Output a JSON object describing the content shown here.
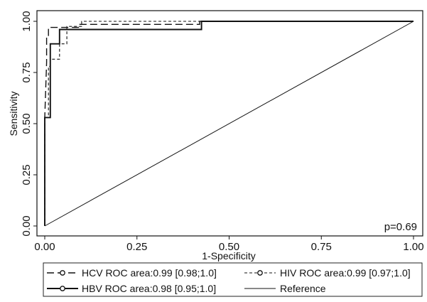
{
  "chart_data": {
    "type": "line",
    "title": "",
    "xlabel": "1-Specificity",
    "ylabel": "Sensitivity",
    "xlim": [
      0,
      1
    ],
    "ylim": [
      0,
      1
    ],
    "x_ticks": [
      "0.00",
      "0.25",
      "0.50",
      "0.75",
      "1.00"
    ],
    "y_ticks": [
      "0.00",
      "0.25",
      "0.50",
      "0.75",
      "1.00"
    ],
    "grid": false,
    "legend_position": "bottom",
    "annotation": "p=0.69",
    "series": [
      {
        "name": "HCV ROC area:0.99 [0.98;1.0]",
        "line_style": "long-dash",
        "color": "#111111",
        "points": [
          [
            0,
            0
          ],
          [
            0,
            0.53
          ],
          [
            0.005,
            0.8
          ],
          [
            0.005,
            0.92
          ],
          [
            0.01,
            0.92
          ],
          [
            0.01,
            0.97
          ],
          [
            0.095,
            0.97
          ],
          [
            0.095,
            0.985
          ],
          [
            0.42,
            0.985
          ],
          [
            0.42,
            1.0
          ],
          [
            1.0,
            1.0
          ]
        ]
      },
      {
        "name": "HIV ROC area:0.99 [0.97;1.0]",
        "line_style": "short-dash",
        "color": "#111111",
        "points": [
          [
            0,
            0
          ],
          [
            0,
            0.53
          ],
          [
            0.01,
            0.53
          ],
          [
            0.01,
            0.78
          ],
          [
            0.015,
            0.78
          ],
          [
            0.015,
            0.815
          ],
          [
            0.04,
            0.815
          ],
          [
            0.04,
            0.89
          ],
          [
            0.06,
            0.89
          ],
          [
            0.06,
            0.975
          ],
          [
            0.1,
            0.975
          ],
          [
            0.1,
            1.0
          ],
          [
            1.0,
            1.0
          ]
        ]
      },
      {
        "name": "HBV ROC area:0.98 [0.95;1.0]",
        "line_style": "solid-bold",
        "color": "#111111",
        "points": [
          [
            0,
            0
          ],
          [
            0,
            0.53
          ],
          [
            0.015,
            0.53
          ],
          [
            0.015,
            0.89
          ],
          [
            0.04,
            0.89
          ],
          [
            0.04,
            0.96
          ],
          [
            0.425,
            0.96
          ],
          [
            0.425,
            1.0
          ],
          [
            1.0,
            1.0
          ]
        ]
      },
      {
        "name": "Reference",
        "line_style": "solid-thin",
        "color": "#111111",
        "points": [
          [
            0,
            0
          ],
          [
            1,
            1
          ]
        ]
      }
    ]
  },
  "legend": {
    "hcv": "HCV ROC area:0.99 [0.98;1.0]",
    "hiv": "HIV ROC area:0.99 [0.97;1.0]",
    "hbv": "HBV ROC area:0.98 [0.95;1.0]",
    "reference": "Reference"
  }
}
